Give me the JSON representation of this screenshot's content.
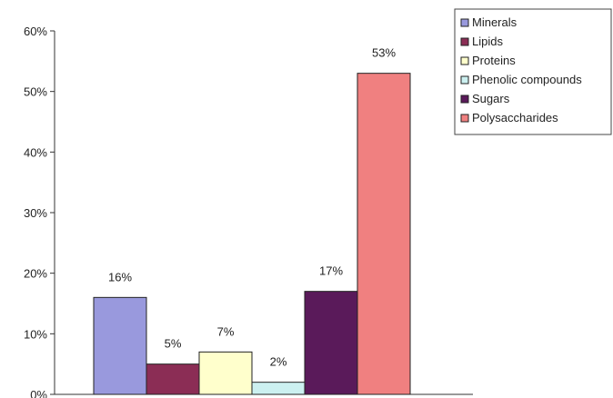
{
  "chart_data": {
    "type": "bar",
    "title": "",
    "xlabel": "",
    "ylabel": "",
    "ylim": [
      0,
      60
    ],
    "yticks": [
      0,
      10,
      20,
      30,
      40,
      50,
      60
    ],
    "ytick_labels": [
      "0%",
      "10%",
      "20%",
      "30%",
      "40%",
      "50%",
      "60%"
    ],
    "grid": false,
    "legend_position": "top-right",
    "series": [
      {
        "name": "Minerals",
        "value": 16,
        "label": "16%",
        "color": "#9999dd"
      },
      {
        "name": "Lipids",
        "value": 5,
        "label": "5%",
        "color": "#8b2d55"
      },
      {
        "name": "Proteins",
        "value": 7,
        "label": "7%",
        "color": "#ffffcc"
      },
      {
        "name": "Phenolic compounds",
        "value": 2,
        "label": "2%",
        "color": "#ccf0f0"
      },
      {
        "name": "Sugars",
        "value": 17,
        "label": "17%",
        "color": "#5a1a5a"
      },
      {
        "name": "Polysaccharides",
        "value": 53,
        "label": "53%",
        "color": "#f08080"
      }
    ]
  }
}
